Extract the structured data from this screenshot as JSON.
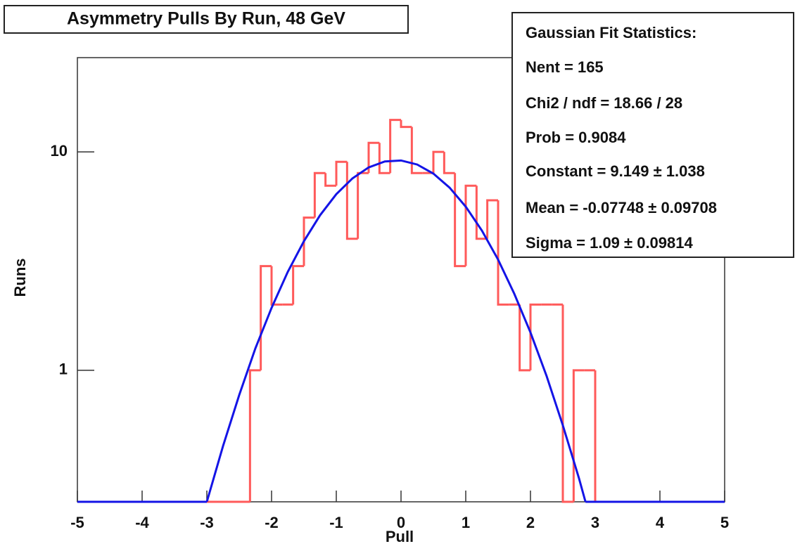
{
  "chart_data": {
    "type": "histogram",
    "title": "Asymmetry Pulls By Run, 48 GeV",
    "xlabel": "Pull",
    "ylabel": "Runs",
    "log_y": true,
    "xlim": [
      -5,
      5
    ],
    "ylim": [
      0.25,
      27
    ],
    "xticks": [
      -5,
      -4,
      -3,
      -2,
      -1,
      0,
      1,
      2,
      3,
      4,
      5
    ],
    "yticks": [
      1,
      10
    ],
    "bins": [
      -5,
      -4.833,
      -4.667,
      -4.5,
      -4.333,
      -4.167,
      -4,
      -3.833,
      -3.667,
      -3.5,
      -3.333,
      -3.167,
      -3,
      -2.833,
      -2.667,
      -2.5,
      -2.333,
      -2.167,
      -2,
      -1.833,
      -1.667,
      -1.5,
      -1.333,
      -1.167,
      -1,
      -0.833,
      -0.667,
      -0.5,
      -0.333,
      -0.167,
      0,
      0.167,
      0.333,
      0.5,
      0.667,
      0.833,
      1,
      1.167,
      1.333,
      1.5,
      1.667,
      1.833,
      2,
      2.167,
      2.333,
      2.5,
      2.667,
      2.833,
      3,
      3.167,
      3.333,
      3.5,
      3.667,
      3.833,
      4,
      4.167,
      4.333,
      4.5,
      4.667,
      4.833,
      5
    ],
    "counts": [
      0,
      0,
      0,
      0,
      0,
      0,
      0,
      0,
      0,
      0,
      0,
      0,
      0,
      0,
      0,
      0,
      1,
      3,
      2,
      2,
      3,
      5,
      8,
      7,
      9,
      4,
      8,
      11,
      8,
      14,
      13,
      8,
      8,
      10,
      8,
      3,
      7,
      4,
      6,
      2,
      2,
      1,
      2,
      2,
      2,
      0,
      1,
      1,
      0,
      0,
      0,
      0,
      0,
      0,
      0,
      0,
      0,
      0,
      0,
      0
    ],
    "color": "#ff5a5a",
    "fit": {
      "color": "#1414e6",
      "x": [
        -3,
        -2.75,
        -2.5,
        -2.25,
        -2,
        -1.75,
        -1.5,
        -1.25,
        -1,
        -0.75,
        -0.5,
        -0.25,
        0,
        0.25,
        0.5,
        0.75,
        1,
        1.25,
        1.5,
        1.75,
        2,
        2.25,
        2.5,
        2.75,
        2.85
      ],
      "values": [
        0.25,
        0.45,
        0.77,
        1.26,
        1.93,
        2.82,
        3.9,
        5.13,
        6.4,
        7.56,
        8.49,
        9.04,
        9.13,
        8.75,
        7.95,
        6.86,
        5.61,
        4.36,
        3.21,
        2.24,
        1.49,
        0.94,
        0.56,
        0.32,
        0.25
      ]
    },
    "stats": [
      "Gaussian Fit Statistics:",
      "Nent = 165",
      "Chi2 / ndf = 18.66 / 28",
      "Prob = 0.9084",
      "Constant = 9.149 ± 1.038",
      "Mean = -0.07748 ± 0.09708",
      "Sigma = 1.09 ± 0.09814"
    ]
  }
}
